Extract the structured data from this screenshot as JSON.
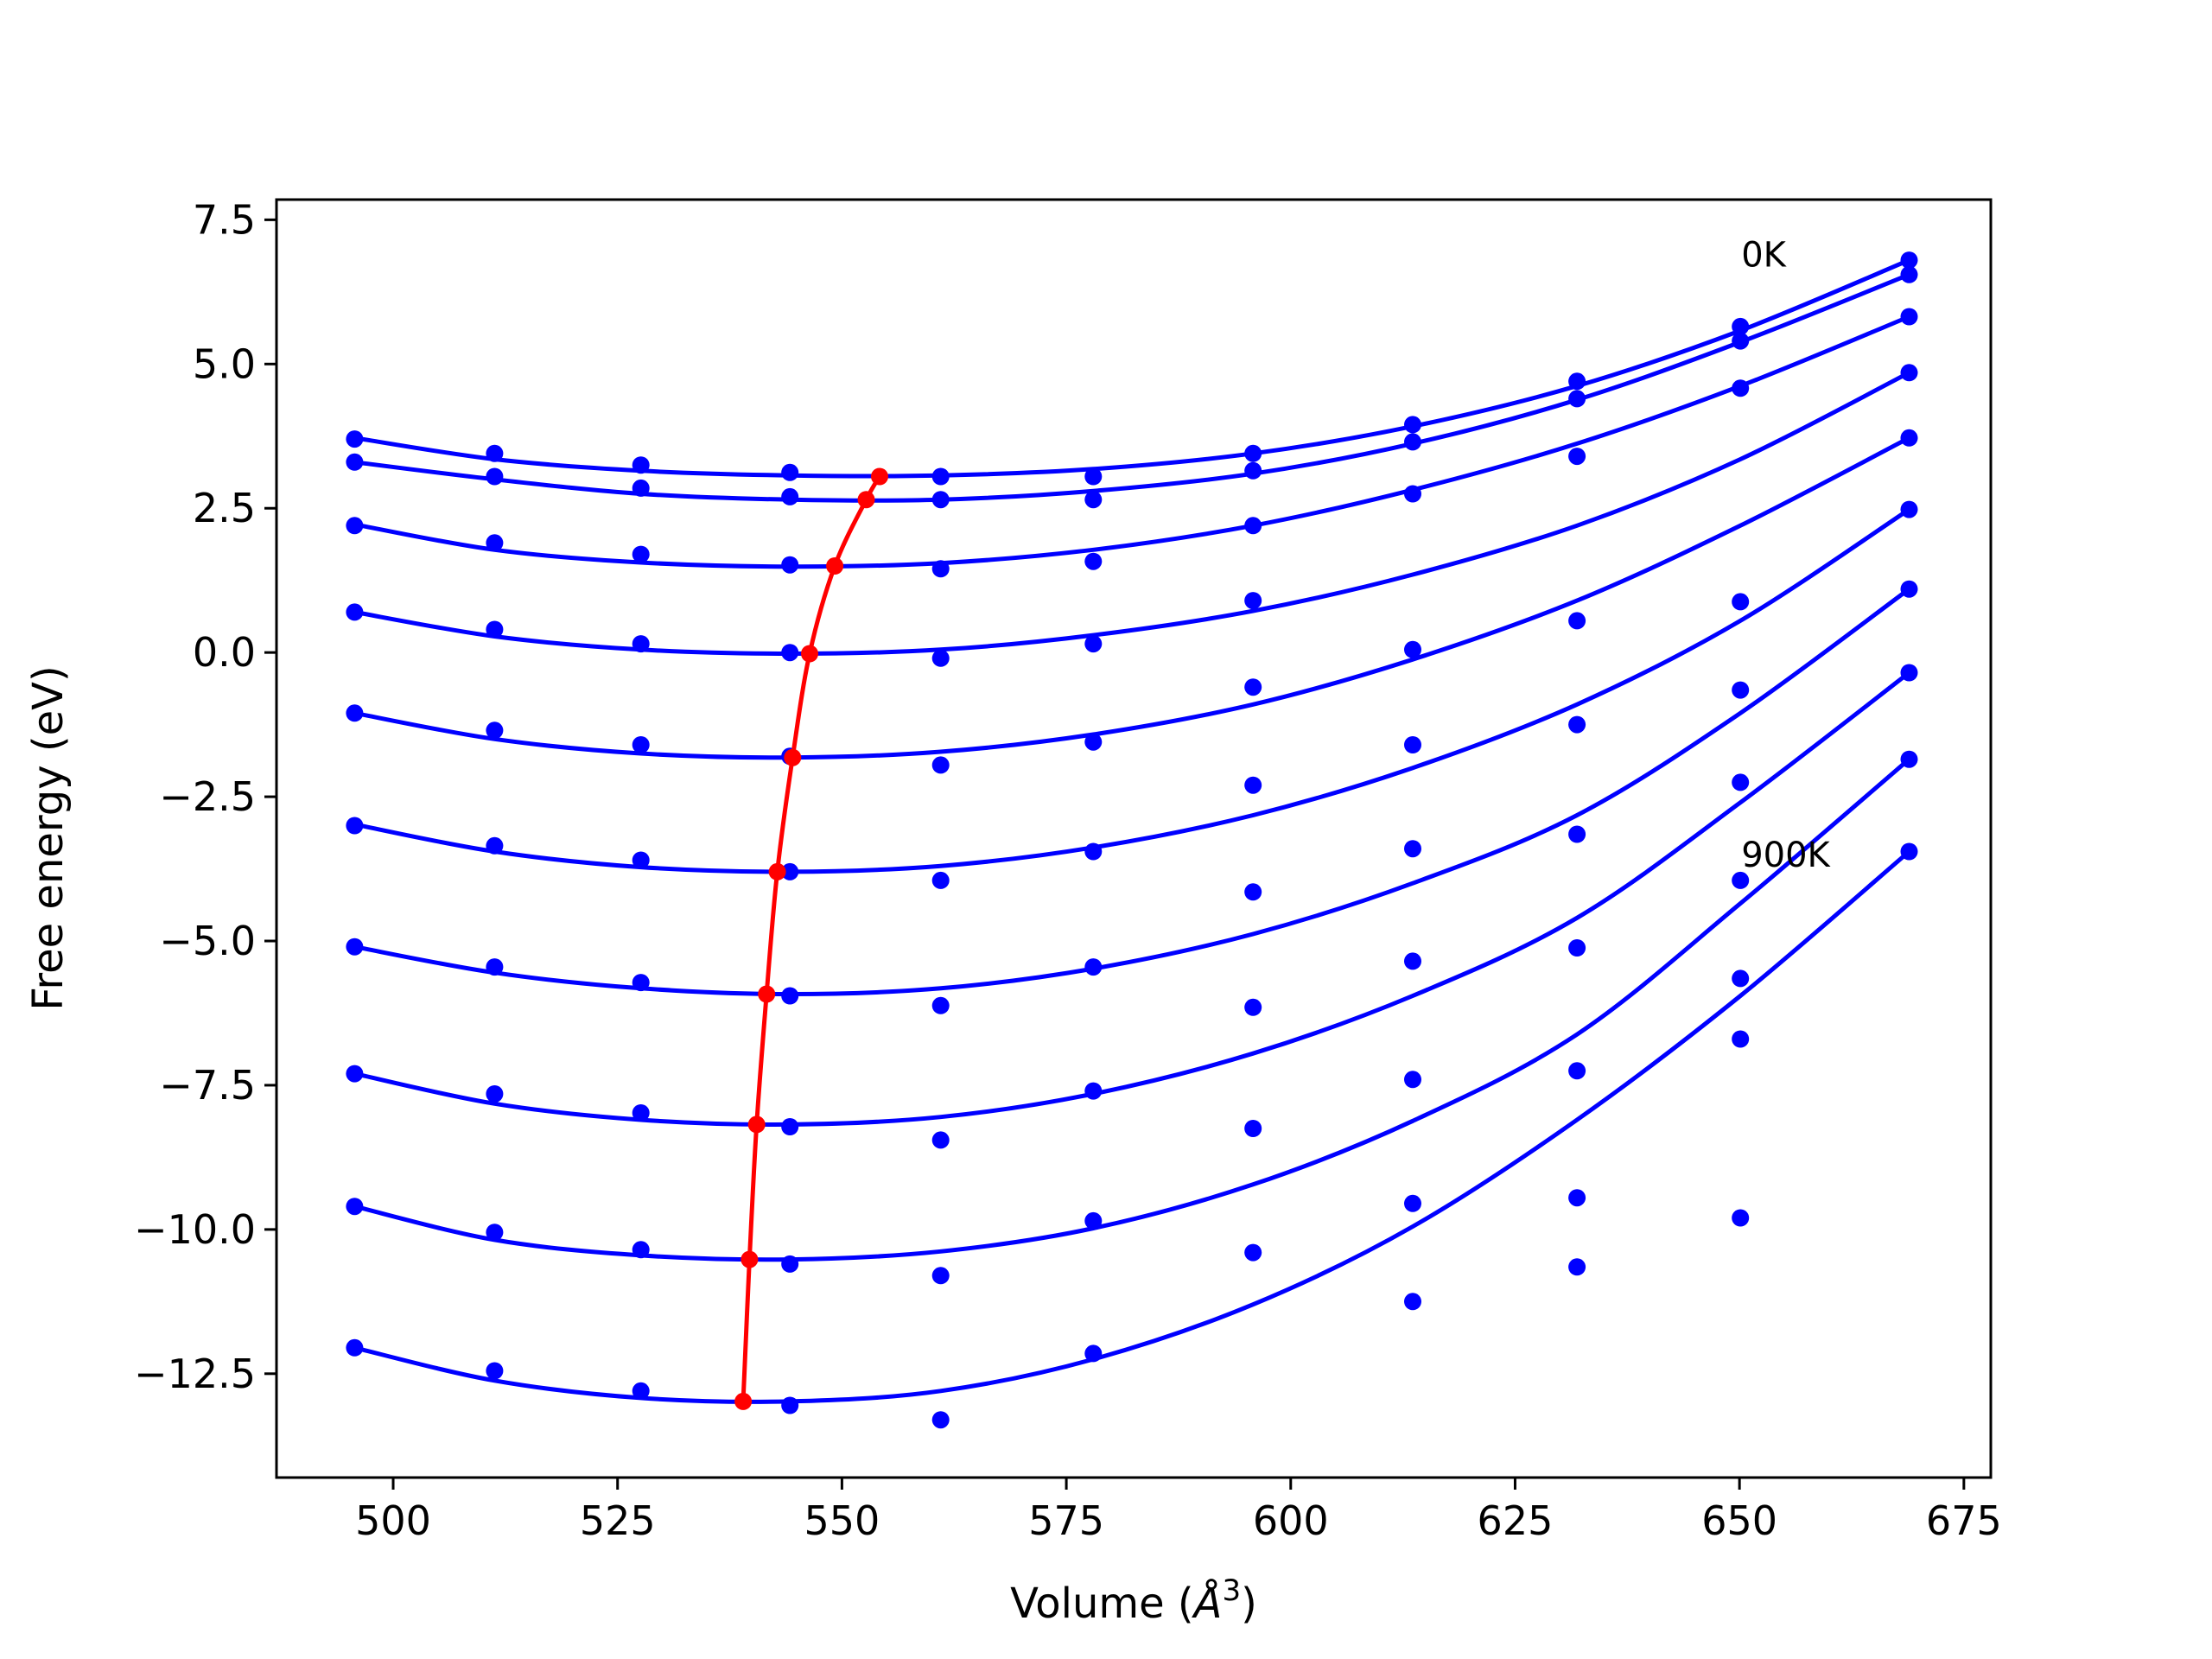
{
  "chart_data": {
    "type": "line",
    "title": "",
    "xlabel": "Volume (",
    "xlabel_symbol": "Å",
    "xlabel_exp": "3",
    "xlabel_close": ")",
    "ylabel": "Free energy (eV)",
    "xlim": [
      487,
      678
    ],
    "ylim": [
      -14.3,
      7.85
    ],
    "xticks": [
      500,
      525,
      550,
      575,
      600,
      625,
      650,
      675
    ],
    "xtick_labels": [
      "500",
      "525",
      "550",
      "575",
      "600",
      "625",
      "650",
      "675"
    ],
    "yticks": [
      7.5,
      5.0,
      2.5,
      0.0,
      -2.5,
      -5.0,
      -7.5,
      -10.0,
      -12.5
    ],
    "ytick_labels": [
      "7.5",
      "5.0",
      "2.5",
      "0.0",
      "−2.5",
      "−5.0",
      "−7.5",
      "−10.0",
      "−12.5"
    ],
    "grid": false,
    "volumes": [
      495.7,
      511.3,
      527.6,
      544.2,
      561.0,
      578.0,
      595.8,
      613.6,
      631.9,
      650.1,
      668.9
    ],
    "series": [
      {
        "values": [
          3.7,
          3.45,
          3.25,
          3.12,
          3.05,
          3.05,
          3.45,
          3.95,
          4.7,
          5.65,
          6.8
        ],
        "fit_values": [
          3.72,
          3.35,
          3.15,
          3.07,
          3.07,
          3.18,
          3.45,
          3.92,
          4.62,
          5.58,
          6.8
        ]
      },
      {
        "values": [
          3.3,
          3.05,
          2.85,
          2.7,
          2.65,
          2.65,
          3.15,
          3.65,
          4.4,
          5.4,
          6.55
        ],
        "fit_values": [
          3.3,
          3.0,
          2.75,
          2.65,
          2.65,
          2.8,
          3.1,
          3.62,
          4.38,
          5.38,
          6.55
        ]
      },
      {
        "values": [
          2.2,
          1.9,
          1.7,
          1.52,
          1.45,
          1.58,
          2.2,
          2.75,
          3.4,
          4.58,
          5.82
        ],
        "fit_values": [
          2.22,
          1.78,
          1.56,
          1.49,
          1.55,
          1.78,
          2.2,
          2.82,
          3.62,
          4.62,
          5.82
        ]
      },
      {
        "values": [
          0.7,
          0.4,
          0.15,
          0.0,
          -0.1,
          0.15,
          0.9,
          0.05,
          0.55,
          0.88,
          4.85
        ],
        "fit_values": [
          0.7,
          0.28,
          0.05,
          -0.02,
          0.05,
          0.3,
          0.72,
          1.35,
          2.2,
          3.35,
          4.85
        ]
      },
      {
        "values": [
          -1.05,
          -1.35,
          -1.6,
          -1.8,
          -1.95,
          -1.55,
          -0.6,
          -1.6,
          -1.25,
          -0.65,
          3.72
        ],
        "fit_values": [
          -1.05,
          -1.5,
          -1.75,
          -1.82,
          -1.72,
          -1.42,
          -0.9,
          -0.12,
          0.9,
          2.2,
          3.72
        ]
      },
      {
        "values": [
          -3.0,
          -3.35,
          -3.6,
          -3.8,
          -3.95,
          -3.45,
          -2.3,
          -3.4,
          -3.15,
          -2.25,
          2.48
        ],
        "fit_values": [
          -2.98,
          -3.45,
          -3.72,
          -3.8,
          -3.7,
          -3.38,
          -2.82,
          -2.0,
          -0.9,
          0.55,
          2.48
        ]
      },
      {
        "values": [
          -5.1,
          -5.45,
          -5.72,
          -5.95,
          -6.12,
          -5.45,
          -4.15,
          -5.35,
          -5.12,
          -3.95,
          1.1
        ],
        "fit_values": [
          -5.1,
          -5.55,
          -5.82,
          -5.92,
          -5.82,
          -5.48,
          -4.88,
          -4.0,
          -2.82,
          -1.05,
          1.1
        ]
      },
      {
        "values": [
          -7.3,
          -7.65,
          -7.98,
          -8.22,
          -8.45,
          -7.6,
          -6.15,
          -7.4,
          -7.25,
          -5.65,
          -0.35
        ],
        "fit_values": [
          -7.3,
          -7.82,
          -8.1,
          -8.18,
          -8.05,
          -7.65,
          -6.95,
          -5.95,
          -4.6,
          -2.6,
          -0.35
        ]
      },
      {
        "values": [
          -9.6,
          -10.05,
          -10.35,
          -10.6,
          -10.8,
          -9.85,
          -8.25,
          -9.55,
          -9.45,
          -6.7,
          -1.85
        ],
        "fit_values": [
          -9.6,
          -10.18,
          -10.45,
          -10.52,
          -10.38,
          -9.98,
          -9.22,
          -8.12,
          -6.62,
          -4.35,
          -1.85
        ]
      },
      {
        "values": [
          -12.05,
          -12.45,
          -12.8,
          -13.05,
          -13.3,
          -12.15,
          -10.4,
          -11.25,
          -10.65,
          -9.8,
          -3.45
        ],
        "fit_values": [
          -12.05,
          -12.62,
          -12.92,
          -12.98,
          -12.8,
          -12.25,
          -11.3,
          -9.95,
          -8.1,
          -5.95,
          -3.45
        ]
      }
    ],
    "minimum_line": {
      "x": [
        554.2,
        552.7,
        549.2,
        546.4,
        544.5,
        542.8,
        541.6,
        540.5,
        539.7,
        539.0
      ],
      "y": [
        3.05,
        2.65,
        1.5,
        -0.02,
        -1.82,
        -3.8,
        -5.92,
        -8.18,
        -10.52,
        -12.98
      ]
    },
    "annotations": [
      {
        "text": "0K",
        "x": 650.2,
        "y": 6.9
      },
      {
        "text": "900K",
        "x": 650.2,
        "y": -3.5
      }
    ],
    "colors": {
      "series": "#0000ff",
      "minimum_line": "#ff0000",
      "axes": "#000000"
    }
  }
}
